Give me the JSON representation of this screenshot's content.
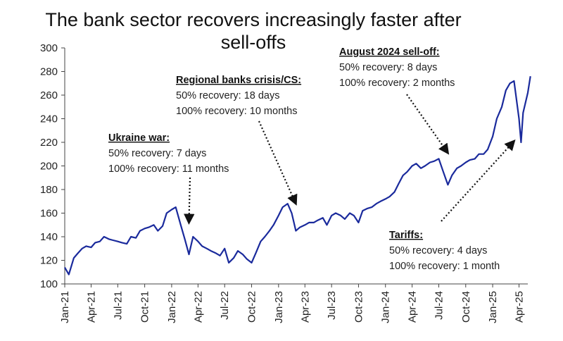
{
  "chart_data": {
    "type": "line",
    "title_lines": [
      "The bank sector recovers increasingly faster after",
      "sell-offs"
    ],
    "xlabel": "",
    "ylabel": "",
    "ylim": [
      100,
      300
    ],
    "yticks": [
      100,
      120,
      140,
      160,
      180,
      200,
      220,
      240,
      260,
      280,
      300
    ],
    "xlim": [
      "2021-01",
      "2025-05"
    ],
    "xticks": [
      "Jan-21",
      "Apr-21",
      "Jul-21",
      "Oct-21",
      "Jan-22",
      "Apr-22",
      "Jul-22",
      "Oct-22",
      "Jan-23",
      "Apr-23",
      "Jul-23",
      "Oct-23",
      "Jan-24",
      "Apr-24",
      "Jul-24",
      "Oct-24",
      "Jan-25",
      "Apr-25"
    ],
    "grid": false,
    "legend": "none",
    "series_color": "#1a2a9c",
    "series": [
      {
        "x": [
          "2021-01-01",
          "2021-01-15",
          "2021-02-01",
          "2021-02-15",
          "2021-03-01",
          "2021-03-15",
          "2021-04-01",
          "2021-04-15",
          "2021-05-01",
          "2021-05-15",
          "2021-06-01",
          "2021-06-15",
          "2021-07-01",
          "2021-07-15",
          "2021-08-01",
          "2021-08-15",
          "2021-09-01",
          "2021-09-15",
          "2021-10-01",
          "2021-10-15",
          "2021-11-01",
          "2021-11-15",
          "2021-12-01",
          "2021-12-15",
          "2022-01-01",
          "2022-01-15",
          "2022-02-01",
          "2022-02-15",
          "2022-03-01",
          "2022-03-15",
          "2022-04-01",
          "2022-04-15",
          "2022-05-01",
          "2022-05-15",
          "2022-06-01",
          "2022-06-15",
          "2022-07-01",
          "2022-07-15",
          "2022-08-01",
          "2022-08-15",
          "2022-09-01",
          "2022-09-15",
          "2022-10-01",
          "2022-10-15",
          "2022-11-01",
          "2022-11-15",
          "2022-12-01",
          "2022-12-15",
          "2023-01-01",
          "2023-01-15",
          "2023-02-01",
          "2023-02-15",
          "2023-03-01",
          "2023-03-15",
          "2023-04-01",
          "2023-04-15",
          "2023-05-01",
          "2023-05-15",
          "2023-06-01",
          "2023-06-15",
          "2023-07-01",
          "2023-07-15",
          "2023-08-01",
          "2023-08-15",
          "2023-09-01",
          "2023-09-15",
          "2023-10-01",
          "2023-10-15",
          "2023-11-01",
          "2023-11-15",
          "2023-12-01",
          "2023-12-15",
          "2024-01-01",
          "2024-01-15",
          "2024-02-01",
          "2024-02-15",
          "2024-03-01",
          "2024-03-15",
          "2024-04-01",
          "2024-04-15",
          "2024-05-01",
          "2024-05-15",
          "2024-06-01",
          "2024-06-15",
          "2024-07-01",
          "2024-07-15",
          "2024-08-01",
          "2024-08-15",
          "2024-09-01",
          "2024-09-15",
          "2024-10-01",
          "2024-10-15",
          "2024-11-01",
          "2024-11-15",
          "2024-12-01",
          "2024-12-15",
          "2025-01-01",
          "2025-01-15",
          "2025-02-01",
          "2025-02-15",
          "2025-03-01",
          "2025-03-15",
          "2025-04-01",
          "2025-04-08",
          "2025-04-15",
          "2025-05-01",
          "2025-05-10"
        ],
        "values": [
          114,
          108,
          122,
          126,
          130,
          132,
          131,
          135,
          136,
          140,
          138,
          137,
          136,
          135,
          134,
          140,
          139,
          145,
          147,
          148,
          150,
          145,
          149,
          160,
          163,
          165,
          150,
          138,
          125,
          140,
          136,
          132,
          130,
          128,
          126,
          124,
          130,
          118,
          122,
          128,
          125,
          121,
          118,
          126,
          136,
          140,
          145,
          150,
          158,
          165,
          168,
          160,
          145,
          148,
          150,
          152,
          152,
          154,
          156,
          150,
          158,
          160,
          158,
          155,
          160,
          158,
          152,
          162,
          164,
          165,
          168,
          170,
          172,
          174,
          178,
          185,
          192,
          195,
          200,
          202,
          198,
          200,
          203,
          204,
          206,
          196,
          184,
          192,
          198,
          200,
          203,
          205,
          206,
          210,
          210,
          214,
          225,
          240,
          250,
          264,
          270,
          272,
          240,
          220,
          245,
          262,
          276
        ]
      }
    ],
    "annotations": [
      {
        "title": "Ukraine war:",
        "lines": [
          "50% recovery: 7 days",
          "100% recovery: 11 months"
        ],
        "arrow_to": {
          "x": "2022-03-01",
          "y": 152
        }
      },
      {
        "title": "Regional banks crisis/CS:",
        "lines": [
          "50% recovery: 18 days",
          "100% recovery: 10 months"
        ],
        "arrow_to": {
          "x": "2023-03-01",
          "y": 168
        }
      },
      {
        "title": "August 2024 sell-off:",
        "lines": [
          "50% recovery: 8 days",
          "100% recovery: 2 months"
        ],
        "arrow_to": {
          "x": "2024-08-01",
          "y": 211
        }
      },
      {
        "title": "Tariffs:",
        "lines": [
          "50% recovery: 4 days",
          "100% recovery: 1 month"
        ],
        "arrow_to": {
          "x": "2025-03-15",
          "y": 221
        }
      }
    ]
  }
}
